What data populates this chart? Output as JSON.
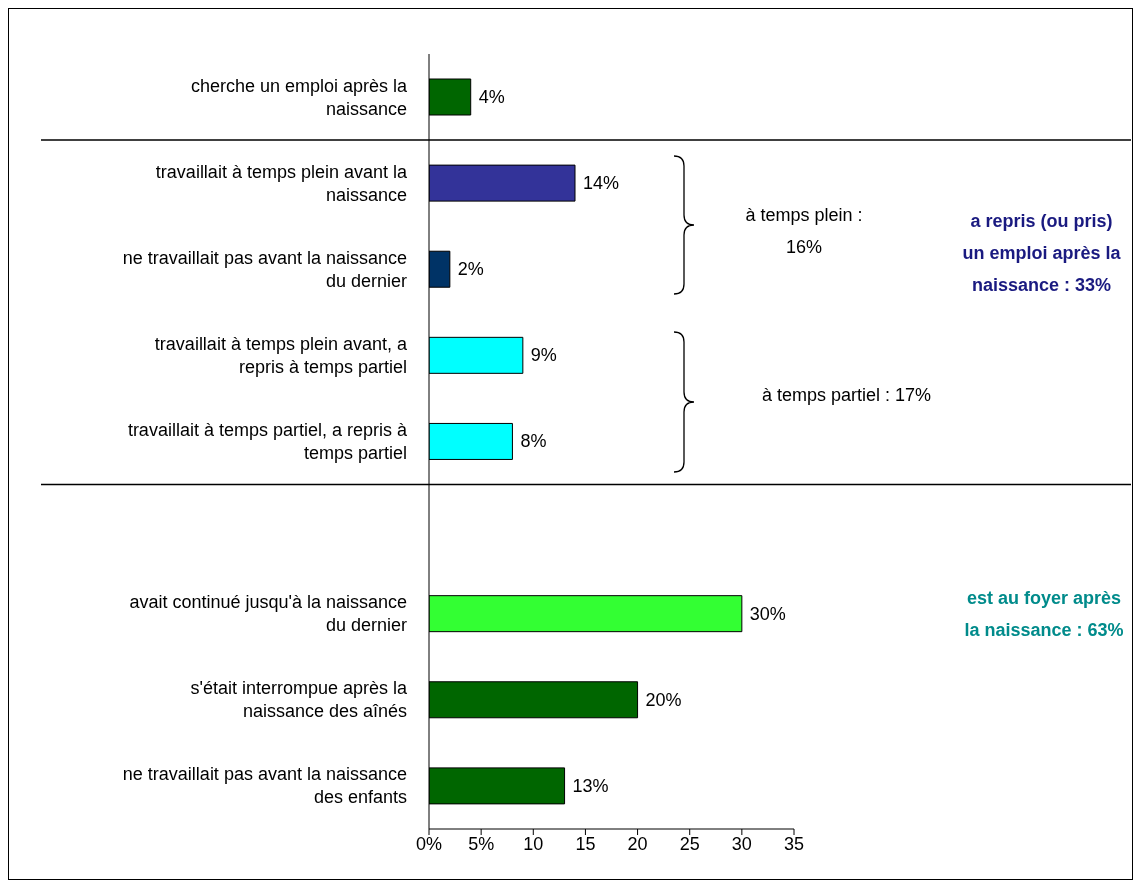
{
  "chart_data": {
    "type": "bar",
    "orientation": "horizontal",
    "categories": [
      "cherche un emploi après la naissance",
      "travaillait à temps plein avant la naissance",
      "ne travaillait pas avant la naissance du dernier",
      "travaillait à temps plein avant, a repris à temps partiel",
      "travaillait à temps partiel, a repris à temps partiel",
      null,
      "avait continué jusqu'à la naissance du dernier",
      "s'était interrompue après la naissance des aînés",
      "ne travaillait pas avant la naissance des enfants"
    ],
    "values": [
      4,
      14,
      2,
      9,
      8,
      null,
      30,
      20,
      13
    ],
    "colors": [
      "#006600",
      "#333399",
      "#003366",
      "#00ffff",
      "#00ffff",
      "#000000",
      "#33ff33",
      "#006600",
      "#006600"
    ],
    "value_labels": [
      "4%",
      "14%",
      "2%",
      "9%",
      "8%",
      null,
      "30%",
      "20%",
      "13%"
    ],
    "xlim": [
      0,
      35
    ],
    "xticks": [
      {
        "value": 0,
        "label": "0%"
      },
      {
        "value": 5,
        "label": "5%"
      },
      10,
      15,
      20,
      25,
      30,
      35
    ],
    "grid": false,
    "legend": false,
    "ref_lines": [
      {
        "axis": "y",
        "value": "cherche un emploi après la naissance",
        "color": "#000000"
      },
      {
        "axis": "y",
        "value": "travaillait à temps partiel, a repris à temps partiel",
        "color": "#000000"
      }
    ],
    "annotations": [
      "à temps plein : 16%",
      "à temps partiel : 17%",
      "a repris (ou pris) un emploi après la naissance : 33%",
      "est au foyer après la naissance : 63%"
    ]
  }
}
